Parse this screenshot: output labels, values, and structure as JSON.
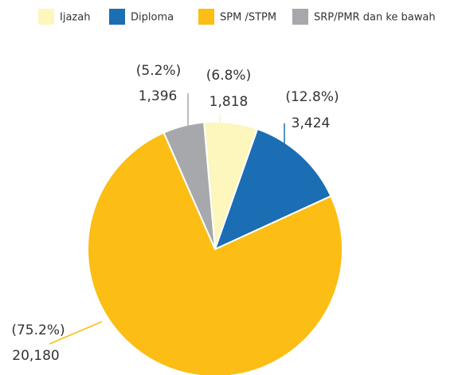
{
  "chart_data": {
    "type": "pie",
    "categories": [
      "Ijazah",
      "Diploma",
      "SPM /STPM",
      "SRP/PMR dan ke bawah"
    ],
    "values": [
      1818,
      3424,
      20180,
      1396
    ],
    "value_labels": [
      "1,818",
      "3,424",
      "20,180",
      "1,396"
    ],
    "percentages": [
      6.8,
      12.8,
      75.2,
      5.2
    ],
    "percentage_labels": [
      "(6.8%)",
      "(12.8%)",
      "(75.2%)",
      "(5.2%)"
    ],
    "colors": [
      "#fdf6bd",
      "#1b6db4",
      "#fcbd14",
      "#a7a8ab"
    ],
    "legend": "top"
  }
}
